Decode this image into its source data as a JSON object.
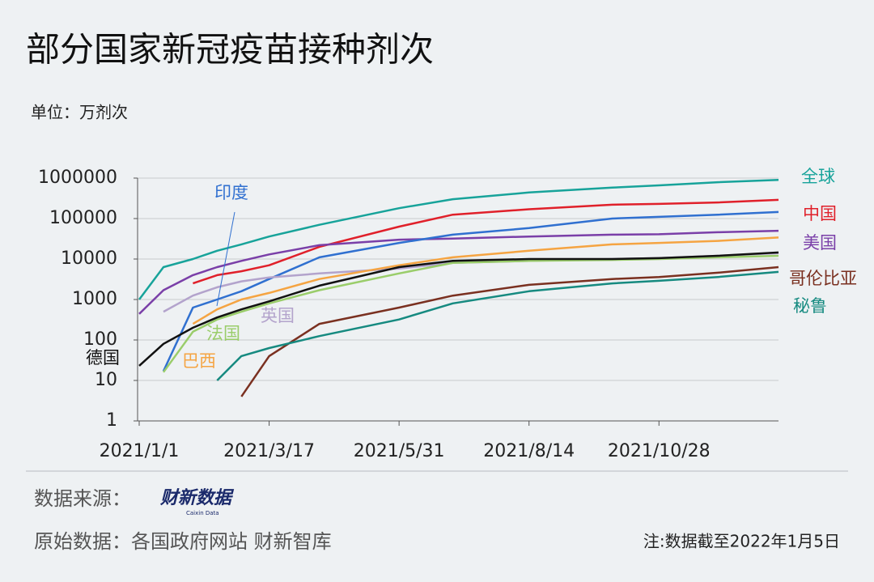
{
  "chart_data": {
    "type": "line",
    "title": "部分国家新冠疫苗接种剂次",
    "subtitle": "单位：万剂次",
    "yscale": "log",
    "ylim": [
      1,
      1000000
    ],
    "yticks": [
      1,
      10,
      100,
      1000,
      10000,
      100000,
      1000000
    ],
    "grid": true,
    "xlim": [
      "2021/1/1",
      "2022/1/5"
    ],
    "xticks": [
      "2021/1/1",
      "2021/3/17",
      "2021/5/31",
      "2021/8/14",
      "2021/10/28"
    ],
    "x": [
      "2021/1/1",
      "2021/1/15",
      "2021/2/1",
      "2021/2/15",
      "2021/3/1",
      "2021/3/17",
      "2021/4/15",
      "2021/5/31",
      "2021/7/1",
      "2021/8/14",
      "2021/10/1",
      "2021/10/28",
      "2021/12/1",
      "2022/1/5"
    ],
    "series": [
      {
        "name": "全球",
        "color": "#17a39a",
        "values": [
          1000,
          6300,
          10000,
          16000,
          23000,
          36000,
          70000,
          180000,
          300000,
          440000,
          580000,
          660000,
          790000,
          900000
        ]
      },
      {
        "name": "中国",
        "color": "#e0202a",
        "values": [
          null,
          null,
          2500,
          4000,
          5000,
          7000,
          20000,
          63000,
          125000,
          170000,
          220000,
          230000,
          250000,
          290000
        ]
      },
      {
        "name": "美国",
        "color": "#7a3fa8",
        "values": [
          440,
          1700,
          4000,
          6300,
          9000,
          13000,
          22000,
          30000,
          32000,
          36000,
          40000,
          41000,
          46000,
          50000
        ]
      },
      {
        "name": "哥伦比亚",
        "color": "#7a3020",
        "values": [
          null,
          null,
          null,
          null,
          4,
          40,
          250,
          630,
          1250,
          2300,
          3200,
          3600,
          4600,
          6300
        ]
      },
      {
        "name": "秘鲁",
        "color": "#168a80",
        "values": [
          null,
          null,
          null,
          10,
          40,
          63,
          125,
          320,
          800,
          1600,
          2500,
          2900,
          3600,
          4800
        ]
      },
      {
        "name": "印度",
        "color": "#3070d0",
        "values": [
          null,
          17,
          630,
          1000,
          1600,
          3200,
          11000,
          25000,
          40000,
          58000,
          100000,
          110000,
          125000,
          145000
        ]
      },
      {
        "name": "英国",
        "color": "#b3a3cc",
        "values": [
          null,
          500,
          1250,
          2000,
          2800,
          3500,
          4400,
          5800,
          8000,
          9000,
          10000,
          10500,
          12000,
          14000
        ]
      },
      {
        "name": "法国",
        "color": "#9acd6a",
        "values": [
          null,
          16,
          160,
          320,
          500,
          800,
          1700,
          4400,
          8000,
          9000,
          9500,
          10000,
          11000,
          12000
        ]
      },
      {
        "name": "巴西",
        "color": "#f5a442",
        "values": [
          null,
          null,
          250,
          570,
          1000,
          1450,
          3200,
          7000,
          11000,
          16000,
          23000,
          25000,
          28000,
          34000
        ]
      },
      {
        "name": "德国",
        "color": "#111111",
        "values": [
          23,
          80,
          200,
          360,
          570,
          900,
          2200,
          6300,
          9000,
          10000,
          10000,
          10500,
          12000,
          14500
        ]
      }
    ]
  },
  "footer": {
    "source_label": "数据来源：",
    "logo": "财新数据",
    "logo_sub": "Caixin Data",
    "origin": "原始数据：各国政府网站 财新智库",
    "note": "注:数据截至2022年1月5日"
  }
}
